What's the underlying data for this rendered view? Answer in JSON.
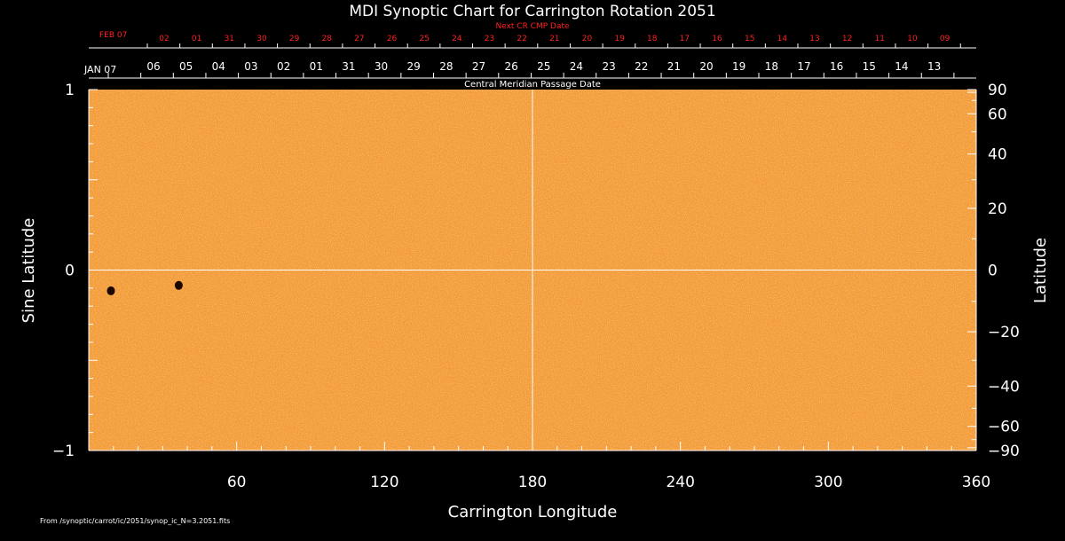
{
  "chart_data": {
    "type": "heatmap",
    "title": "MDI Synoptic Chart for Carrington Rotation 2051",
    "xlabel": "Carrington Longitude",
    "ylabel_left": "Sine Latitude",
    "ylabel_right": "Latitude",
    "xlim": [
      0,
      360
    ],
    "ylim": [
      -1,
      1
    ],
    "x_ticks": [
      60,
      120,
      180,
      240,
      300,
      360
    ],
    "y_ticks_left": [
      -1,
      0,
      1
    ],
    "y_ticks_right": [
      90,
      60,
      40,
      20,
      0,
      -20,
      -40,
      -60,
      -90
    ],
    "y_tick_labels_right": [
      "90",
      "60",
      "40",
      "20",
      "0",
      "−20",
      "−40",
      "−60",
      "−90"
    ],
    "top_axis_label": "Central Meridian Passage Date",
    "cmp_first_label": "JAN 07",
    "cmp_dates": [
      "06",
      "05",
      "04",
      "03",
      "02",
      "01",
      "31",
      "30",
      "29",
      "28",
      "27",
      "26",
      "25",
      "24",
      "23",
      "22",
      "21",
      "20",
      "19",
      "18",
      "17",
      "16",
      "15",
      "14",
      "13"
    ],
    "next_cr_label": "Next CR CMP Date",
    "next_cr_first_label": "FEB 07",
    "next_cr_dates": [
      "02",
      "01",
      "31",
      "30",
      "29",
      "28",
      "27",
      "26",
      "25",
      "24",
      "23",
      "22",
      "21",
      "20",
      "19",
      "18",
      "17",
      "16",
      "15",
      "14",
      "13",
      "12",
      "11",
      "10",
      "09"
    ],
    "grid": {
      "longitude": 180,
      "sine_latitude": 0
    },
    "sunspots": [
      {
        "longitude": 9,
        "sine_latitude": -0.115
      },
      {
        "longitude": 36.5,
        "sine_latitude": -0.085
      }
    ],
    "colors": {
      "background": "#000000",
      "surface": "#f39a35",
      "grid": "#ffffff",
      "secondary_axis": "#ff2020",
      "spot": "#1a0800"
    }
  },
  "footer": "From /synoptic/carrot/ic/2051/synop_ic_N=3.2051.fits"
}
